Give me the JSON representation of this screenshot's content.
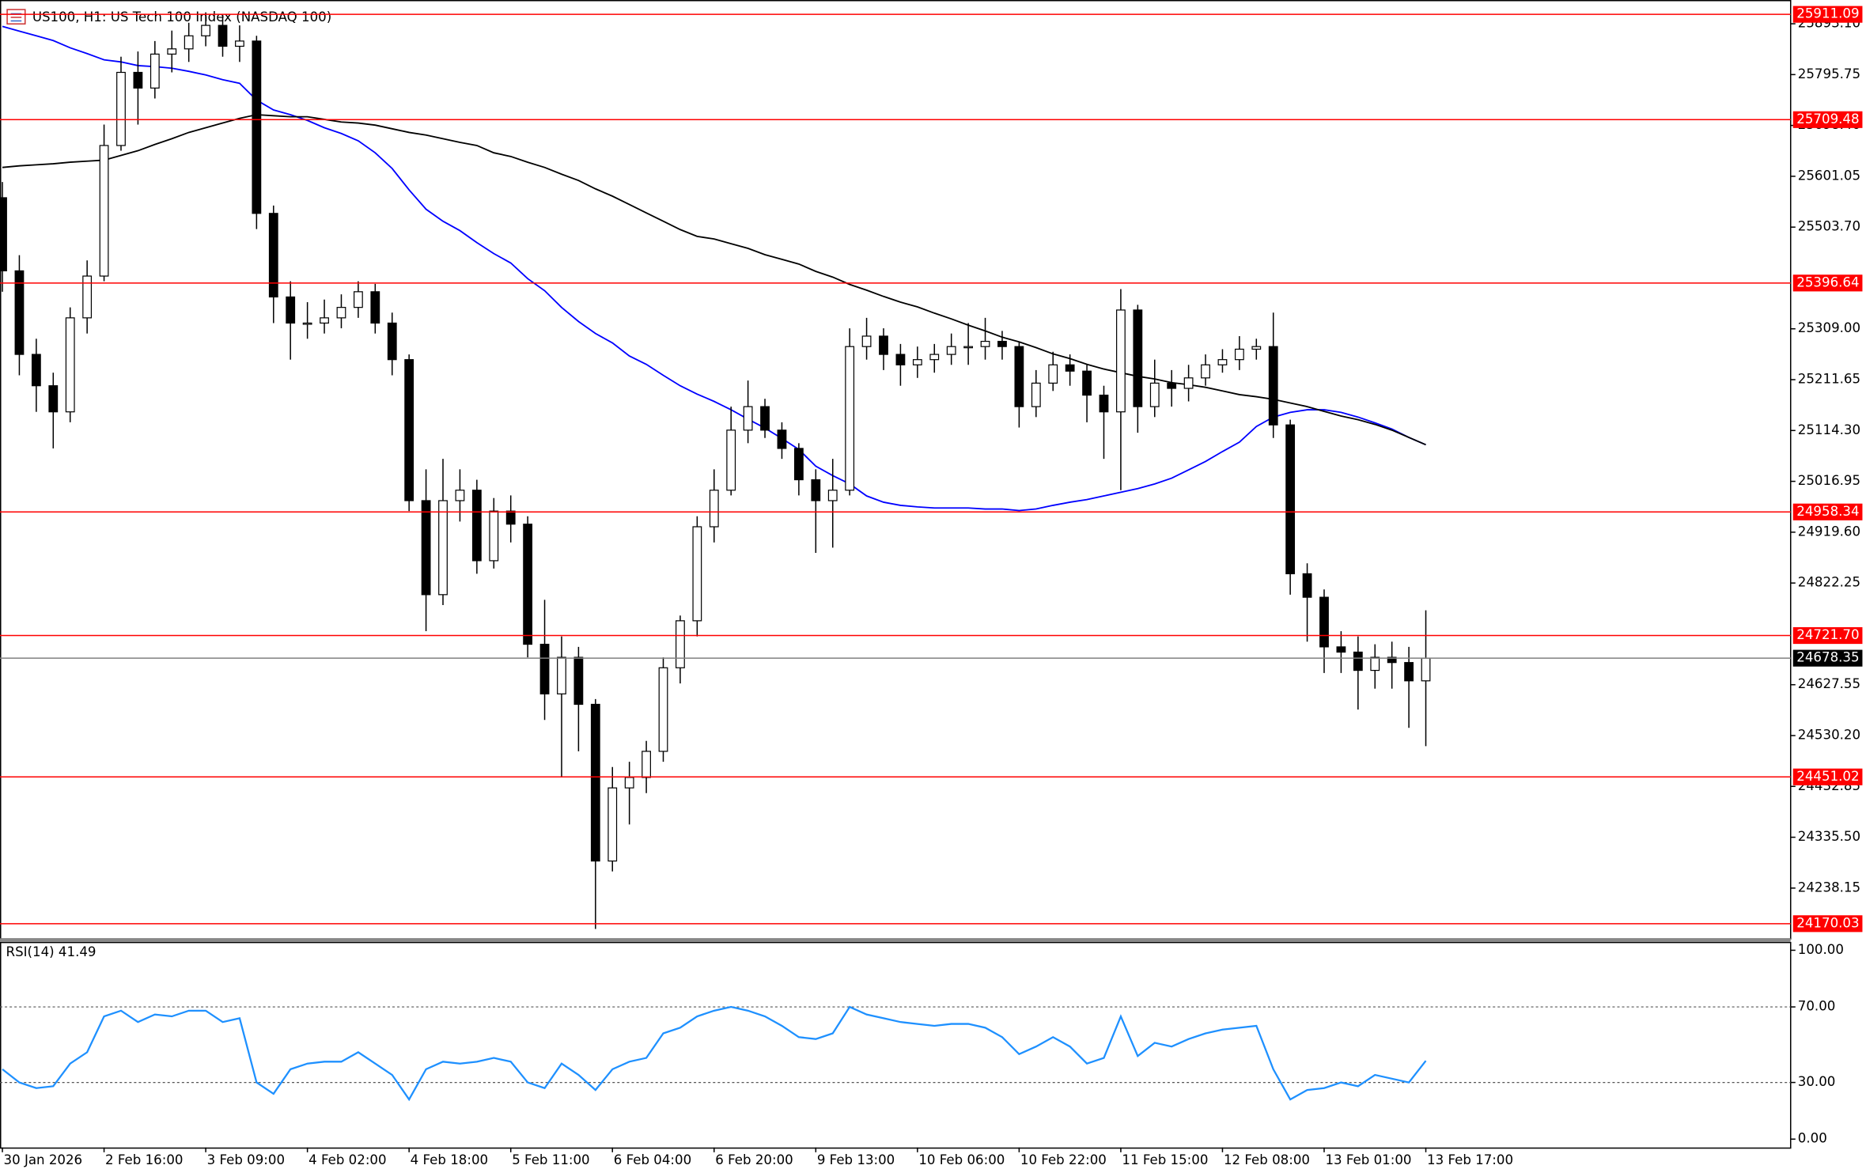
{
  "chart_data": [
    {
      "type": "candlestick",
      "title": "US100, H1:  US Tech 100 Index (NASDAQ 100)",
      "categories": [
        "30 Jan 2026",
        null,
        null,
        null,
        null,
        null,
        "2 Feb 16:00",
        null,
        null,
        null,
        null,
        null,
        "3 Feb 09:00",
        null,
        null,
        null,
        null,
        null,
        "4 Feb 02:00",
        null,
        null,
        null,
        null,
        null,
        "4 Feb 18:00",
        null,
        null,
        null,
        null,
        null,
        "5 Feb 11:00",
        null,
        null,
        null,
        null,
        null,
        "6 Feb 04:00",
        null,
        null,
        null,
        null,
        null,
        "6 Feb 20:00",
        null,
        null,
        null,
        null,
        null,
        "9 Feb 13:00",
        null,
        null,
        null,
        null,
        null,
        "10 Feb 06:00",
        null,
        null,
        null,
        null,
        null,
        "10 Feb 22:00",
        null,
        null,
        null,
        null,
        null,
        "11 Feb 15:00",
        null,
        null,
        null,
        null,
        null,
        "12 Feb 08:00",
        null,
        null,
        null,
        null,
        null,
        "13 Feb 01:00",
        null,
        null,
        null,
        null,
        null,
        "13 Feb 17:00"
      ],
      "open": [
        25560,
        25420,
        25260,
        25200,
        25150,
        25330,
        25410,
        25660,
        25800,
        25770,
        25835,
        25845,
        25870,
        25890,
        25850,
        25860,
        25530,
        25370,
        25320,
        25320,
        25330,
        25350,
        25380,
        25320,
        25250,
        24980,
        24800,
        24980,
        25000,
        24865,
        24960,
        24935,
        24705,
        24610,
        24680,
        24590,
        24290,
        24430,
        24450,
        24500,
        24660,
        24750,
        24930,
        25000,
        25115,
        25160,
        25115,
        25080,
        25020,
        24980,
        25000,
        25275,
        25295,
        25260,
        25240,
        25250,
        25260,
        25275,
        25275,
        25285,
        25275,
        25160,
        25205,
        25240,
        25228,
        25182,
        25150,
        25345,
        25160,
        25205,
        25195,
        25215,
        25240,
        25250,
        25270,
        25275,
        25125,
        24840,
        24795,
        24700,
        24690,
        24655,
        24680,
        24670,
        24635
      ],
      "high": [
        25590,
        25450,
        25290,
        25225,
        25350,
        25440,
        25700,
        25830,
        25840,
        25860,
        25880,
        25895,
        25915,
        25910,
        25890,
        25870,
        25545,
        25400,
        25360,
        25365,
        25375,
        25400,
        25395,
        25340,
        25260,
        25040,
        25060,
        25040,
        25020,
        24985,
        24990,
        24950,
        24790,
        24720,
        24700,
        24600,
        24470,
        24480,
        24520,
        24680,
        24760,
        24950,
        25040,
        25160,
        25210,
        25175,
        25130,
        25090,
        25040,
        25060,
        25310,
        25330,
        25310,
        25280,
        25275,
        25280,
        25300,
        25320,
        25330,
        25305,
        25285,
        25230,
        25265,
        25260,
        25240,
        25200,
        25385,
        25355,
        25250,
        25230,
        25240,
        25260,
        25270,
        25295,
        25290,
        25340,
        25135,
        24860,
        24810,
        24730,
        24720,
        24705,
        24710,
        24700,
        24770
      ],
      "low": [
        25380,
        25220,
        25150,
        25080,
        25130,
        25300,
        25400,
        25650,
        25700,
        25750,
        25800,
        25820,
        25850,
        25830,
        25820,
        25500,
        25320,
        25250,
        25290,
        25300,
        25310,
        25330,
        25300,
        25220,
        24960,
        24730,
        24780,
        24940,
        24840,
        24850,
        24900,
        24680,
        24560,
        24450,
        24500,
        24160,
        24270,
        24360,
        24420,
        24480,
        24630,
        24720,
        24900,
        24990,
        25090,
        25100,
        25060,
        24990,
        24880,
        24890,
        24990,
        25250,
        25230,
        25200,
        25215,
        25225,
        25240,
        25240,
        25250,
        25250,
        25120,
        25140,
        25190,
        25200,
        25130,
        25060,
        25000,
        25110,
        25140,
        25160,
        25170,
        25200,
        25225,
        25230,
        25250,
        25100,
        24800,
        24710,
        24650,
        24650,
        24580,
        24620,
        24620,
        24545,
        24510
      ],
      "close": [
        25420,
        25260,
        25200,
        25150,
        25330,
        25410,
        25660,
        25800,
        25770,
        25835,
        25845,
        25870,
        25890,
        25850,
        25860,
        25530,
        25370,
        25320,
        25320,
        25330,
        25350,
        25380,
        25320,
        25250,
        24980,
        24800,
        24980,
        25000,
        24865,
        24960,
        24935,
        24705,
        24610,
        24680,
        24590,
        24290,
        24430,
        24450,
        24500,
        24660,
        24750,
        24930,
        25000,
        25115,
        25160,
        25115,
        25080,
        25020,
        24980,
        25000,
        25275,
        25295,
        25260,
        25240,
        25250,
        25260,
        25275,
        25275,
        25285,
        25275,
        25160,
        25205,
        25240,
        25228,
        25182,
        25150,
        25345,
        25160,
        25205,
        25195,
        25215,
        25240,
        25250,
        25270,
        25275,
        25125,
        24840,
        24795,
        24700,
        24690,
        24655,
        24680,
        24670,
        24635,
        24678.35
      ],
      "up_color": "#ffffff",
      "down_color": "#000000",
      "ylim": [
        24142,
        25934
      ],
      "yticks": [
        {
          "value": 25893.1,
          "label": "25893.10"
        },
        25795.75,
        {
          "value": 25698.4,
          "label": "25698.40"
        },
        25601.05,
        {
          "value": 25503.7,
          "label": "25503.70"
        },
        {
          "value": 25309,
          "label": "25309.00"
        },
        25211.65,
        {
          "value": 25114.3,
          "label": "25114.30"
        },
        25016.95,
        {
          "value": 24919.6,
          "label": "24919.60"
        },
        24822.25,
        24627.55,
        {
          "value": 24530.2,
          "label": "24530.20"
        },
        24432.85,
        {
          "value": 24335.5,
          "label": "24335.50"
        },
        24238.15
      ],
      "levels": {
        "color": "#ff0000",
        "values": [
          25911.09,
          25709.48,
          25396.64,
          24958.34,
          {
            "value": 24721.7,
            "label": "24721.70"
          },
          24451.02,
          24170.03
        ]
      },
      "current_price": 24678.35,
      "lines": [
        {
          "color": "#0000ff",
          "values": [
            25888,
            25879,
            25870,
            25861,
            25847,
            25836,
            25824,
            25820,
            25813,
            25811,
            25808,
            25802,
            25795,
            25786,
            25779,
            25747,
            25728,
            25719,
            25708,
            25694,
            25683,
            25669,
            25646,
            25616,
            25575,
            25538,
            25515,
            25497,
            25474,
            25453,
            25435,
            25405,
            25382,
            25350,
            25323,
            25300,
            25282,
            25257,
            25241,
            25220,
            25200,
            25184,
            25170,
            25154,
            25136,
            25119,
            25099,
            25078,
            25046,
            25028,
            25012,
            24989,
            24977,
            24971,
            24968,
            24966,
            24966,
            24966,
            24964,
            24964,
            24961,
            24964,
            24971,
            24977,
            24982,
            24989,
            24996,
            25003,
            25012,
            25023,
            25039,
            25055,
            25074,
            25092,
            25122,
            25140,
            25149,
            25154,
            25154,
            25149,
            25140,
            25129,
            25117,
            25101,
            25087
          ]
        },
        {
          "color": "#000000",
          "values": [
            25618,
            25621,
            25623,
            25625,
            25628,
            25630,
            25632,
            25641,
            25650,
            25662,
            25673,
            25685,
            25694,
            25703,
            25712,
            25719,
            25717,
            25715,
            25715,
            25710,
            25705,
            25703,
            25699,
            25692,
            25685,
            25680,
            25673,
            25666,
            25660,
            25646,
            25639,
            25628,
            25618,
            25605,
            25593,
            25577,
            25563,
            25547,
            25531,
            25515,
            25499,
            25486,
            25481,
            25472,
            25463,
            25451,
            25442,
            25433,
            25419,
            25408,
            25394,
            25383,
            25371,
            25360,
            25351,
            25339,
            25328,
            25316,
            25305,
            25293,
            25284,
            25273,
            25261,
            25252,
            25241,
            25232,
            25225,
            25218,
            25213,
            25206,
            25202,
            25197,
            25190,
            25183,
            25179,
            25174,
            25167,
            25160,
            25151,
            25142,
            25135,
            25126,
            25115,
            25101,
            25087
          ]
        }
      ]
    },
    {
      "type": "line",
      "title": "RSI(14) 41.49",
      "color": "#1e90ff",
      "values": [
        37,
        30,
        27,
        28,
        40,
        46,
        65,
        68,
        62,
        66,
        65,
        68,
        68,
        62,
        64,
        30,
        24,
        37,
        40,
        41,
        41,
        46,
        40,
        34,
        21,
        37,
        41,
        40,
        41,
        43,
        41,
        30,
        27,
        40,
        34,
        26,
        37,
        41,
        43,
        56,
        59,
        65,
        68,
        70,
        68,
        65,
        60,
        54,
        53,
        56,
        70,
        66,
        64,
        62,
        61,
        60,
        61,
        61,
        59,
        54,
        45,
        49,
        54,
        49,
        40,
        43,
        65,
        44,
        51,
        49,
        53,
        56,
        58,
        59,
        60,
        37,
        21,
        26,
        27,
        30,
        28,
        34,
        32,
        30,
        41.49
      ],
      "ylim": [
        0,
        100
      ],
      "yticks": [
        {
          "value": 100,
          "label": "100.00"
        },
        {
          "value": 70,
          "label": "70.00"
        },
        {
          "value": 30,
          "label": "30.00"
        },
        {
          "value": 0,
          "label": "0.00"
        }
      ],
      "guides": [
        70,
        30
      ]
    }
  ]
}
